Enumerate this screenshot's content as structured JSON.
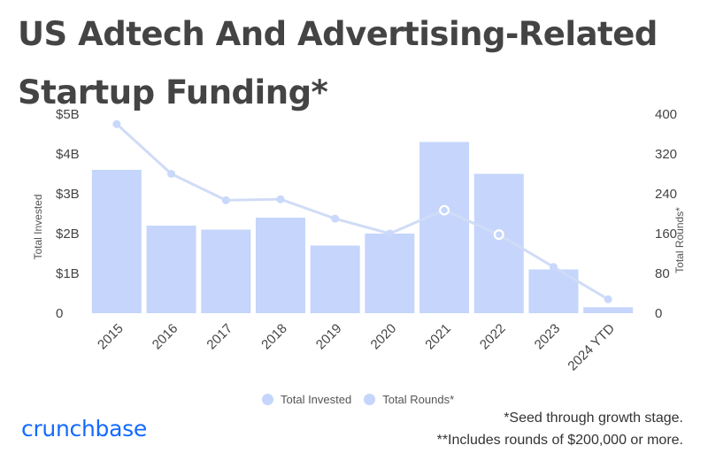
{
  "title": "US Adtech And Advertising-Related Startup Funding*",
  "colors": {
    "bar": "#c5d5fb",
    "line": "#d0dcf6",
    "marker": "#c9d8fb",
    "logo": "#146aff"
  },
  "legend": [
    {
      "label": "Total Invested",
      "color": "#c5d5fb"
    },
    {
      "label": "Total Rounds*",
      "color": "#c5d5fb"
    }
  ],
  "footnotes": {
    "line1": "*Seed through growth stage.",
    "line2": "**Includes rounds of $200,000 or more."
  },
  "brand": "crunchbase",
  "chart_data": {
    "type": "bar",
    "categories": [
      "2015",
      "2016",
      "2017",
      "2018",
      "2019",
      "2020",
      "2021",
      "2022",
      "2023",
      "2024 YTD"
    ],
    "series": [
      {
        "name": "Total Invested",
        "type": "bar",
        "axis": "left",
        "values": [
          3.6,
          2.2,
          2.1,
          2.4,
          1.7,
          2.0,
          4.3,
          3.5,
          1.1,
          0.15
        ]
      },
      {
        "name": "Total Rounds*",
        "type": "line",
        "axis": "right",
        "values": [
          380,
          280,
          227,
          229,
          190,
          160,
          207,
          158,
          93,
          28
        ]
      }
    ],
    "ylabel": "Total Invested",
    "y2label": "Total Rounds*",
    "ylim": [
      0,
      5
    ],
    "y2lim": [
      0,
      400
    ],
    "yticks": [
      "0",
      "$1B",
      "$2B",
      "$3B",
      "$4B",
      "$5B"
    ],
    "y2ticks": [
      "0",
      "80",
      "160",
      "240",
      "320",
      "400"
    ],
    "grid": false,
    "legend_position": "bottom"
  }
}
